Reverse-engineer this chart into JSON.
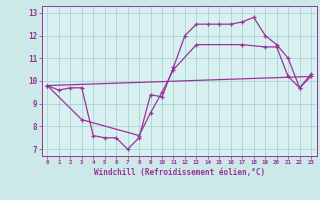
{
  "xlabel": "Windchill (Refroidissement éolien,°C)",
  "background_color": "#cce8e8",
  "plot_bg_color": "#d8f0f0",
  "grid_color": "#aad4d4",
  "line_color": "#993399",
  "xlim": [
    -0.5,
    23.5
  ],
  "ylim": [
    6.7,
    13.3
  ],
  "xticks": [
    0,
    1,
    2,
    3,
    4,
    5,
    6,
    7,
    8,
    9,
    10,
    11,
    12,
    13,
    14,
    15,
    16,
    17,
    18,
    19,
    20,
    21,
    22,
    23
  ],
  "yticks": [
    7,
    8,
    9,
    10,
    11,
    12,
    13
  ],
  "line1_x": [
    0,
    1,
    2,
    3,
    4,
    5,
    6,
    7,
    8,
    9,
    10,
    11,
    12,
    13,
    14,
    15,
    16,
    17,
    18,
    19,
    20,
    21,
    22,
    23
  ],
  "line1_y": [
    9.8,
    9.6,
    9.7,
    9.7,
    7.6,
    7.5,
    7.5,
    7.0,
    7.5,
    9.4,
    9.3,
    10.6,
    12.0,
    12.5,
    12.5,
    12.5,
    12.5,
    12.6,
    12.8,
    12.0,
    11.6,
    11.0,
    9.7,
    10.3
  ],
  "line2_x": [
    0,
    3,
    8,
    9,
    10,
    11,
    13,
    17,
    19,
    20,
    21,
    22,
    23
  ],
  "line2_y": [
    9.8,
    8.3,
    7.6,
    8.6,
    9.5,
    10.5,
    11.6,
    11.6,
    11.5,
    11.5,
    10.2,
    9.7,
    10.2
  ],
  "line3_x": [
    0,
    23
  ],
  "line3_y": [
    9.8,
    10.2
  ],
  "marker": "+"
}
